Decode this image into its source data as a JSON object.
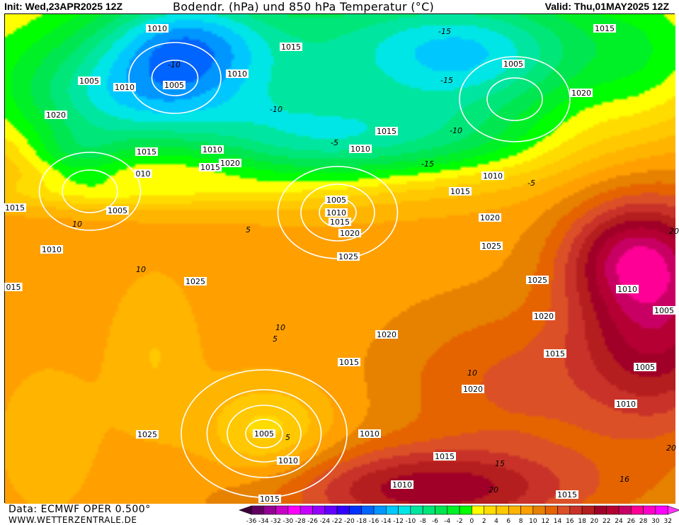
{
  "header": {
    "init": "Init: Wed,23APR2025 12Z",
    "title": "Bodendr. (hPa) und 850 hPa Temperatur (°C)",
    "valid": "Valid: Thu,01MAY2025 12Z"
  },
  "footer": {
    "data_source": "Data: ECMWF OPER 0.500°",
    "website": "WWW.WETTERZENTRALE.DE"
  },
  "legend": {
    "tick_labels": [
      "-36",
      "-34",
      "-32",
      "-30",
      "-28",
      "-26",
      "-24",
      "-22",
      "-20",
      "-18",
      "-16",
      "-14",
      "-12",
      "-10",
      "-8",
      "-6",
      "-4",
      "-2",
      "0",
      "2",
      "4",
      "6",
      "8",
      "10",
      "12",
      "14",
      "16",
      "18",
      "20",
      "22",
      "24",
      "26",
      "28",
      "30",
      "32"
    ],
    "colors": [
      "#600060",
      "#960096",
      "#c800c8",
      "#ff00ff",
      "#c800ff",
      "#9600ff",
      "#6400ff",
      "#3200ff",
      "#0032ff",
      "#0064ff",
      "#0096ff",
      "#00c8ff",
      "#00e6e6",
      "#00e6a0",
      "#00e678",
      "#00e650",
      "#00f028",
      "#00ff00",
      "#ffff00",
      "#ffdc00",
      "#ffc800",
      "#ffb400",
      "#ffa000",
      "#e68200",
      "#e66400",
      "#dc5028",
      "#c83228",
      "#b41e1e",
      "#a00028",
      "#b40032",
      "#c80064",
      "#ff0096",
      "#ff00c8",
      "#ff00ff"
    ],
    "below_color": "#3c003c",
    "above_color": "#ff32ff"
  },
  "map": {
    "isobar_labels": [
      "1010",
      "1015",
      "1015",
      "1005",
      "1010",
      "1005",
      "1010",
      "1005",
      "1020",
      "1020",
      "1015",
      "1015",
      "1010",
      "1010",
      "1015",
      "1020",
      "010",
      "1010",
      "1015",
      "1005",
      "1010",
      "1015",
      "1020",
      "1015",
      "1005",
      "1020",
      "1010",
      "1025",
      "1025",
      "1025",
      "1025",
      "1010",
      "015",
      "1005",
      "1020",
      "1020",
      "1015",
      "1015",
      "1005",
      "1020",
      "1010",
      "1025",
      "1005",
      "1010",
      "1010",
      "1015",
      "1010",
      "1015",
      "1015"
    ],
    "temperature_labels": [
      "-15",
      "-10",
      "-10",
      "-5",
      "-5",
      "5",
      "10",
      "10",
      "5",
      "-10",
      "-15",
      "-15",
      "10",
      "5",
      "10",
      "15",
      "20",
      "20",
      "16",
      "20"
    ]
  }
}
